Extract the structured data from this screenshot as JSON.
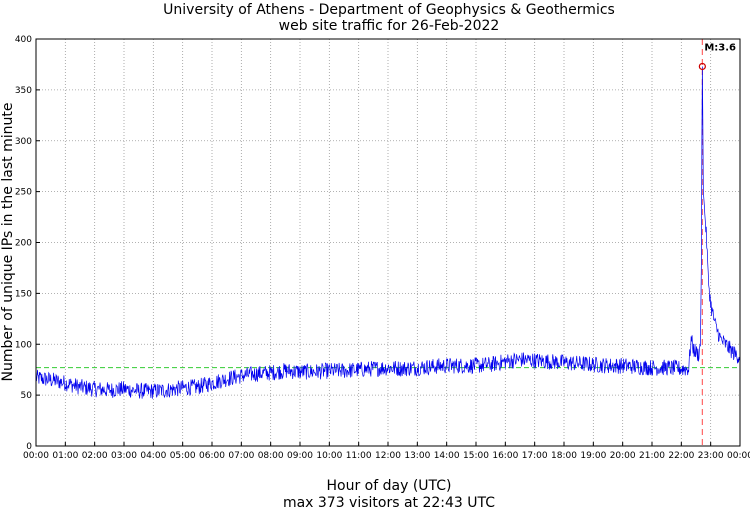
{
  "chart_data": {
    "type": "line",
    "title": "University of Athens - Department of Geophysics & Geothermics",
    "subtitle": "web site traffic for 26-Feb-2022",
    "xlabel": "Hour of day (UTC)",
    "summary": "max 373 visitors at 22:43 UTC",
    "ylabel": "Number of unique IPs in the last minute",
    "xlim": [
      0,
      1440
    ],
    "ylim": [
      0,
      400
    ],
    "x_ticks": [
      "00:00",
      "01:00",
      "02:00",
      "03:00",
      "04:00",
      "05:00",
      "06:00",
      "07:00",
      "08:00",
      "09:00",
      "10:00",
      "11:00",
      "12:00",
      "13:00",
      "14:00",
      "15:00",
      "16:00",
      "17:00",
      "18:00",
      "19:00",
      "20:00",
      "21:00",
      "22:00",
      "23:00",
      "00:00"
    ],
    "y_ticks": [
      0,
      50,
      100,
      150,
      200,
      250,
      300,
      350,
      400
    ],
    "grid": true,
    "reference_line": {
      "y": 77,
      "color": "#33cc33",
      "style": "dashed"
    },
    "event_line": {
      "x": 1363,
      "color": "#ff6666",
      "style": "dashed"
    },
    "annotation": {
      "text": "M:3.6",
      "x": 1363,
      "y": 373
    },
    "series": [
      {
        "color": "#0000ee",
        "x": [
          0,
          30,
          60,
          90,
          120,
          150,
          180,
          210,
          240,
          270,
          300,
          330,
          360,
          390,
          420,
          450,
          480,
          510,
          540,
          570,
          600,
          630,
          660,
          690,
          720,
          750,
          780,
          810,
          840,
          870,
          900,
          930,
          960,
          990,
          1020,
          1050,
          1080,
          1110,
          1140,
          1170,
          1200,
          1230,
          1260,
          1290,
          1320,
          1335,
          1340,
          1345,
          1350,
          1355,
          1359,
          1361,
          1362,
          1363,
          1364,
          1365,
          1368,
          1372,
          1375,
          1380,
          1385,
          1390,
          1395,
          1400,
          1410,
          1420,
          1430,
          1440
        ],
        "y": [
          67,
          65,
          62,
          58,
          56,
          55,
          56,
          54,
          54,
          55,
          57,
          58,
          62,
          66,
          69,
          71,
          72,
          74,
          73,
          73,
          74,
          74,
          75,
          76,
          77,
          76,
          77,
          78,
          79,
          79,
          79,
          80,
          83,
          85,
          84,
          83,
          82,
          81,
          80,
          79,
          79,
          78,
          77,
          77,
          76,
          76,
          105,
          95,
          92,
          90,
          98,
          180,
          300,
          373,
          320,
          250,
          230,
          200,
          165,
          140,
          128,
          118,
          112,
          105,
          100,
          95,
          90,
          88
        ]
      }
    ]
  }
}
